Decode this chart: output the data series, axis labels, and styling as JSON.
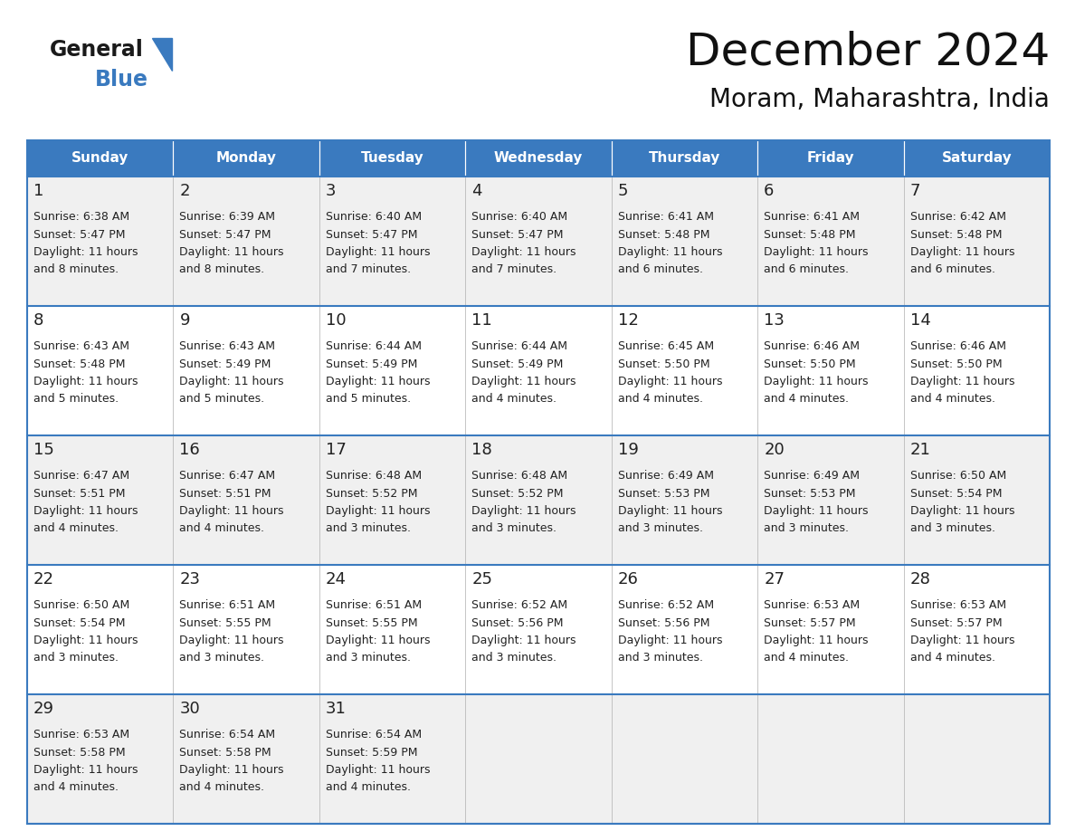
{
  "title": "December 2024",
  "subtitle": "Moram, Maharashtra, India",
  "header_color": "#3a7abf",
  "header_text_color": "#ffffff",
  "row_bg_even": "#f0f0f0",
  "row_bg_odd": "#ffffff",
  "border_color": "#3a7abf",
  "grid_color": "#bbbbbb",
  "day_headers": [
    "Sunday",
    "Monday",
    "Tuesday",
    "Wednesday",
    "Thursday",
    "Friday",
    "Saturday"
  ],
  "days": [
    {
      "day": 1,
      "col": 0,
      "row": 0,
      "sunrise": "6:38 AM",
      "sunset": "5:47 PM",
      "daylight": "11 hours",
      "daylight2": "and 8 minutes."
    },
    {
      "day": 2,
      "col": 1,
      "row": 0,
      "sunrise": "6:39 AM",
      "sunset": "5:47 PM",
      "daylight": "11 hours",
      "daylight2": "and 8 minutes."
    },
    {
      "day": 3,
      "col": 2,
      "row": 0,
      "sunrise": "6:40 AM",
      "sunset": "5:47 PM",
      "daylight": "11 hours",
      "daylight2": "and 7 minutes."
    },
    {
      "day": 4,
      "col": 3,
      "row": 0,
      "sunrise": "6:40 AM",
      "sunset": "5:47 PM",
      "daylight": "11 hours",
      "daylight2": "and 7 minutes."
    },
    {
      "day": 5,
      "col": 4,
      "row": 0,
      "sunrise": "6:41 AM",
      "sunset": "5:48 PM",
      "daylight": "11 hours",
      "daylight2": "and 6 minutes."
    },
    {
      "day": 6,
      "col": 5,
      "row": 0,
      "sunrise": "6:41 AM",
      "sunset": "5:48 PM",
      "daylight": "11 hours",
      "daylight2": "and 6 minutes."
    },
    {
      "day": 7,
      "col": 6,
      "row": 0,
      "sunrise": "6:42 AM",
      "sunset": "5:48 PM",
      "daylight": "11 hours",
      "daylight2": "and 6 minutes."
    },
    {
      "day": 8,
      "col": 0,
      "row": 1,
      "sunrise": "6:43 AM",
      "sunset": "5:48 PM",
      "daylight": "11 hours",
      "daylight2": "and 5 minutes."
    },
    {
      "day": 9,
      "col": 1,
      "row": 1,
      "sunrise": "6:43 AM",
      "sunset": "5:49 PM",
      "daylight": "11 hours",
      "daylight2": "and 5 minutes."
    },
    {
      "day": 10,
      "col": 2,
      "row": 1,
      "sunrise": "6:44 AM",
      "sunset": "5:49 PM",
      "daylight": "11 hours",
      "daylight2": "and 5 minutes."
    },
    {
      "day": 11,
      "col": 3,
      "row": 1,
      "sunrise": "6:44 AM",
      "sunset": "5:49 PM",
      "daylight": "11 hours",
      "daylight2": "and 4 minutes."
    },
    {
      "day": 12,
      "col": 4,
      "row": 1,
      "sunrise": "6:45 AM",
      "sunset": "5:50 PM",
      "daylight": "11 hours",
      "daylight2": "and 4 minutes."
    },
    {
      "day": 13,
      "col": 5,
      "row": 1,
      "sunrise": "6:46 AM",
      "sunset": "5:50 PM",
      "daylight": "11 hours",
      "daylight2": "and 4 minutes."
    },
    {
      "day": 14,
      "col": 6,
      "row": 1,
      "sunrise": "6:46 AM",
      "sunset": "5:50 PM",
      "daylight": "11 hours",
      "daylight2": "and 4 minutes."
    },
    {
      "day": 15,
      "col": 0,
      "row": 2,
      "sunrise": "6:47 AM",
      "sunset": "5:51 PM",
      "daylight": "11 hours",
      "daylight2": "and 4 minutes."
    },
    {
      "day": 16,
      "col": 1,
      "row": 2,
      "sunrise": "6:47 AM",
      "sunset": "5:51 PM",
      "daylight": "11 hours",
      "daylight2": "and 4 minutes."
    },
    {
      "day": 17,
      "col": 2,
      "row": 2,
      "sunrise": "6:48 AM",
      "sunset": "5:52 PM",
      "daylight": "11 hours",
      "daylight2": "and 3 minutes."
    },
    {
      "day": 18,
      "col": 3,
      "row": 2,
      "sunrise": "6:48 AM",
      "sunset": "5:52 PM",
      "daylight": "11 hours",
      "daylight2": "and 3 minutes."
    },
    {
      "day": 19,
      "col": 4,
      "row": 2,
      "sunrise": "6:49 AM",
      "sunset": "5:53 PM",
      "daylight": "11 hours",
      "daylight2": "and 3 minutes."
    },
    {
      "day": 20,
      "col": 5,
      "row": 2,
      "sunrise": "6:49 AM",
      "sunset": "5:53 PM",
      "daylight": "11 hours",
      "daylight2": "and 3 minutes."
    },
    {
      "day": 21,
      "col": 6,
      "row": 2,
      "sunrise": "6:50 AM",
      "sunset": "5:54 PM",
      "daylight": "11 hours",
      "daylight2": "and 3 minutes."
    },
    {
      "day": 22,
      "col": 0,
      "row": 3,
      "sunrise": "6:50 AM",
      "sunset": "5:54 PM",
      "daylight": "11 hours",
      "daylight2": "and 3 minutes."
    },
    {
      "day": 23,
      "col": 1,
      "row": 3,
      "sunrise": "6:51 AM",
      "sunset": "5:55 PM",
      "daylight": "11 hours",
      "daylight2": "and 3 minutes."
    },
    {
      "day": 24,
      "col": 2,
      "row": 3,
      "sunrise": "6:51 AM",
      "sunset": "5:55 PM",
      "daylight": "11 hours",
      "daylight2": "and 3 minutes."
    },
    {
      "day": 25,
      "col": 3,
      "row": 3,
      "sunrise": "6:52 AM",
      "sunset": "5:56 PM",
      "daylight": "11 hours",
      "daylight2": "and 3 minutes."
    },
    {
      "day": 26,
      "col": 4,
      "row": 3,
      "sunrise": "6:52 AM",
      "sunset": "5:56 PM",
      "daylight": "11 hours",
      "daylight2": "and 3 minutes."
    },
    {
      "day": 27,
      "col": 5,
      "row": 3,
      "sunrise": "6:53 AM",
      "sunset": "5:57 PM",
      "daylight": "11 hours",
      "daylight2": "and 4 minutes."
    },
    {
      "day": 28,
      "col": 6,
      "row": 3,
      "sunrise": "6:53 AM",
      "sunset": "5:57 PM",
      "daylight": "11 hours",
      "daylight2": "and 4 minutes."
    },
    {
      "day": 29,
      "col": 0,
      "row": 4,
      "sunrise": "6:53 AM",
      "sunset": "5:58 PM",
      "daylight": "11 hours",
      "daylight2": "and 4 minutes."
    },
    {
      "day": 30,
      "col": 1,
      "row": 4,
      "sunrise": "6:54 AM",
      "sunset": "5:58 PM",
      "daylight": "11 hours",
      "daylight2": "and 4 minutes."
    },
    {
      "day": 31,
      "col": 2,
      "row": 4,
      "sunrise": "6:54 AM",
      "sunset": "5:59 PM",
      "daylight": "11 hours",
      "daylight2": "and 4 minutes."
    }
  ],
  "logo_general_color": "#1a1a1a",
  "logo_blue_color": "#3a7abf",
  "num_rows": 5,
  "num_cols": 7,
  "title_fontsize": 36,
  "subtitle_fontsize": 20,
  "header_fontsize": 11,
  "day_num_fontsize": 13,
  "cell_text_fontsize": 9
}
